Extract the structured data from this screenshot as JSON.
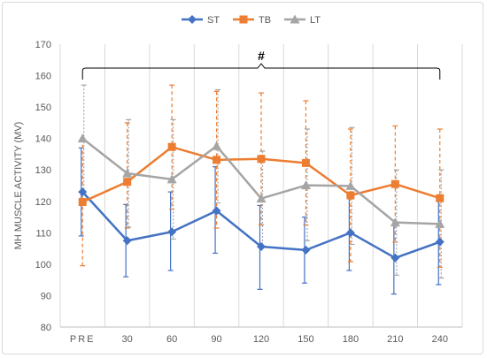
{
  "chart_data": {
    "type": "line",
    "title": "",
    "xlabel": "",
    "ylabel": "MH MUSCLE ACTIVITY (MV)",
    "categories": [
      "PRE",
      "30",
      "60",
      "90",
      "120",
      "150",
      "180",
      "210",
      "240"
    ],
    "ylim": [
      80,
      170
    ],
    "yticks": [
      80,
      90,
      100,
      110,
      120,
      130,
      140,
      150,
      160,
      170
    ],
    "grid": "vertical-only",
    "legend_position": "top",
    "annotation": "#",
    "series": [
      {
        "name": "ST",
        "color": "#4472c4",
        "marker": "diamond",
        "error_style": "solid",
        "values": [
          123,
          107.5,
          110.3,
          117,
          105.6,
          104.5,
          110,
          102,
          107.1
        ],
        "error_upper": [
          137,
          119,
          123,
          131,
          118.7,
          115,
          122,
          114,
          120.5
        ],
        "error_lower": [
          109,
          96,
          98,
          103.5,
          92,
          94,
          98,
          90.5,
          93.5
        ]
      },
      {
        "name": "TB",
        "color": "#ed7d31",
        "marker": "square",
        "error_style": "dashed",
        "values": [
          119.8,
          126.2,
          137.3,
          133.2,
          133.5,
          132.2,
          121.9,
          125.5,
          121
        ],
        "error_upper": [
          140,
          145,
          157,
          155,
          154.5,
          152,
          143,
          144,
          143
        ],
        "error_lower": [
          99.5,
          111.5,
          117.5,
          111.5,
          112.5,
          112.5,
          100.8,
          107,
          99
        ]
      },
      {
        "name": "LT",
        "color": "#a5a5a5",
        "marker": "triangle",
        "error_style": "dotted",
        "values": [
          140,
          128.9,
          127,
          137.6,
          120.9,
          125.1,
          124.9,
          113.3,
          112.8
        ],
        "error_upper": [
          157,
          146,
          146,
          155.5,
          136,
          143,
          143.5,
          130,
          130
        ],
        "error_lower": [
          123,
          111.8,
          108,
          119.5,
          105.8,
          107.5,
          106.3,
          96.5,
          95.6
        ]
      }
    ]
  }
}
